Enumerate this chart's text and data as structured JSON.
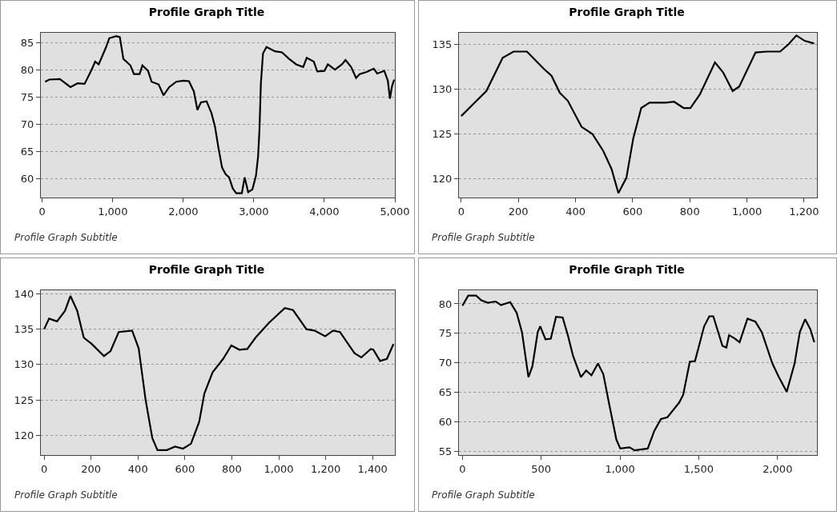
{
  "chart_data": [
    {
      "type": "line",
      "title": "Profile Graph Title",
      "annotations": [
        "Profile Graph Subtitle"
      ],
      "xlim": [
        -20,
        5000
      ],
      "ylim": [
        56.5,
        86.8
      ],
      "xticks": [
        0,
        {
          "value": 1000,
          "label": "1,000"
        },
        {
          "value": 2000,
          "label": "2,000"
        },
        {
          "value": 3000,
          "label": "3,000"
        },
        {
          "value": 4000,
          "label": "4,000"
        },
        {
          "value": 5000,
          "label": "5,000"
        }
      ],
      "yticks": [
        60,
        65,
        70,
        75,
        80,
        85
      ],
      "grid": "y",
      "series": [
        {
          "color": "#000000",
          "x": [
            40,
            100,
            250,
            400,
            500,
            600,
            700,
            750,
            800,
            900,
            950,
            1050,
            1100,
            1150,
            1250,
            1300,
            1380,
            1420,
            1500,
            1550,
            1650,
            1720,
            1800,
            1900,
            2000,
            2080,
            2150,
            2200,
            2250,
            2330,
            2400,
            2450,
            2500,
            2550,
            2600,
            2650,
            2700,
            2750,
            2830,
            2870,
            2920,
            2980,
            3030,
            3060,
            3080,
            3100,
            3130,
            3180,
            3300,
            3400,
            3500,
            3600,
            3700,
            3750,
            3850,
            3900,
            4000,
            4050,
            4150,
            4250,
            4300,
            4380,
            4450,
            4500,
            4600,
            4700,
            4750,
            4850,
            4900,
            4930,
            4960,
            4990
          ],
          "values": [
            77.8,
            78.2,
            78.3,
            76.8,
            77.5,
            77.4,
            80,
            81.5,
            81,
            84,
            85.8,
            86.2,
            86,
            82,
            80.8,
            79.2,
            79.2,
            80.8,
            79.8,
            77.8,
            77.3,
            75.3,
            76.8,
            77.8,
            78,
            77.9,
            76,
            72.6,
            74,
            74.2,
            72,
            69.5,
            65.5,
            62,
            60.8,
            60.2,
            58.2,
            57.3,
            57.3,
            60.2,
            57.5,
            58,
            60.5,
            64,
            69,
            77.5,
            83,
            84.2,
            83.4,
            83.2,
            82,
            81,
            80.5,
            82.2,
            81.5,
            79.7,
            79.8,
            81,
            80,
            81,
            81.8,
            80.5,
            78.5,
            79.2,
            79.6,
            80.2,
            79.3,
            79.8,
            78,
            74.7,
            77,
            78.2
          ]
        }
      ]
    },
    {
      "type": "line",
      "title": "Profile Graph Title",
      "annotations": [
        "Profile Graph Subtitle"
      ],
      "xlim": [
        -8,
        1245
      ],
      "ylim": [
        117.9,
        136.3
      ],
      "xticks": [
        0,
        200,
        400,
        600,
        800,
        {
          "value": 1000,
          "label": "1,000"
        },
        {
          "value": 1200,
          "label": "1,200"
        }
      ],
      "yticks": [
        120,
        125,
        130,
        135
      ],
      "grid": "y",
      "series": [
        {
          "color": "#000000",
          "x": [
            0,
            50,
            88,
            145,
            183,
            230,
            288,
            316,
            345,
            373,
            421,
            459,
            497,
            526,
            550,
            578,
            602,
            630,
            659,
            716,
            745,
            778,
            802,
            835,
            888,
            916,
            950,
            973,
            1030,
            1069,
            1116,
            1145,
            1173,
            1202,
            1235
          ],
          "values": [
            127,
            128.6,
            129.8,
            133.5,
            134.2,
            134.2,
            132.3,
            131.5,
            129.6,
            128.7,
            125.8,
            125,
            123.1,
            121.1,
            118.4,
            120.1,
            124.5,
            127.9,
            128.5,
            128.5,
            128.6,
            127.9,
            127.9,
            129.4,
            133,
            131.9,
            129.8,
            130.3,
            134.1,
            134.2,
            134.2,
            135,
            136,
            135.4,
            135.1
          ]
        }
      ]
    },
    {
      "type": "line",
      "title": "Profile Graph Title",
      "annotations": [
        "Profile Graph Subtitle"
      ],
      "xlim": [
        -14,
        1495
      ],
      "ylim": [
        117.2,
        140.5
      ],
      "xticks": [
        0,
        200,
        400,
        600,
        800,
        {
          "value": 1000,
          "label": "1,000"
        },
        {
          "value": 1200,
          "label": "1,200"
        },
        {
          "value": 1400,
          "label": "1,400"
        }
      ],
      "yticks": [
        120,
        125,
        130,
        135,
        140
      ],
      "grid": "y",
      "series": [
        {
          "color": "#000000",
          "x": [
            0,
            21,
            55,
            89,
            112,
            141,
            169,
            203,
            255,
            283,
            318,
            375,
            403,
            432,
            461,
            483,
            523,
            558,
            592,
            626,
            661,
            683,
            718,
            763,
            798,
            832,
            866,
            901,
            958,
            1026,
            1061,
            1118,
            1152,
            1198,
            1232,
            1261,
            1323,
            1352,
            1392,
            1403,
            1432,
            1461,
            1489
          ],
          "values": [
            135,
            136.5,
            136.1,
            137.6,
            139.7,
            137.6,
            133.8,
            132.9,
            131.2,
            131.9,
            134.6,
            134.8,
            132.3,
            125.1,
            119.6,
            117.9,
            117.9,
            118.4,
            118.1,
            118.8,
            121.9,
            125.9,
            128.9,
            130.8,
            132.7,
            132.1,
            132.2,
            133.8,
            135.9,
            138,
            137.7,
            135,
            134.8,
            134,
            134.8,
            134.6,
            131.6,
            131,
            132.2,
            132.1,
            130.5,
            130.8,
            132.9
          ]
        }
      ]
    },
    {
      "type": "line",
      "title": "Profile Graph Title",
      "annotations": [
        "Profile Graph Subtitle"
      ],
      "xlim": [
        -22,
        2250
      ],
      "ylim": [
        54.4,
        82.3
      ],
      "xticks": [
        0,
        500,
        {
          "value": 1000,
          "label": "1,000"
        },
        {
          "value": 1500,
          "label": "1,500"
        },
        {
          "value": 2000,
          "label": "2,000"
        }
      ],
      "yticks": [
        55,
        60,
        65,
        70,
        75,
        80
      ],
      "grid": "y",
      "series": [
        {
          "color": "#000000",
          "x": [
            0,
            37,
            87,
            120,
            161,
            211,
            245,
            303,
            344,
            378,
            419,
            444,
            478,
            494,
            527,
            561,
            594,
            636,
            669,
            702,
            752,
            785,
            819,
            860,
            894,
            927,
            977,
            1002,
            1060,
            1093,
            1176,
            1218,
            1260,
            1301,
            1376,
            1401,
            1443,
            1476,
            1534,
            1567,
            1592,
            1650,
            1675,
            1692,
            1725,
            1759,
            1809,
            1859,
            1900,
            1967,
            2008,
            2058,
            2108,
            2141,
            2175,
            2208,
            2233
          ],
          "values": [
            79.7,
            81.4,
            81.4,
            80.6,
            80.2,
            80.4,
            79.8,
            80.3,
            78.5,
            75.2,
            67.6,
            69.4,
            75.2,
            76.2,
            74,
            74.1,
            77.8,
            77.7,
            74.7,
            71.2,
            67.6,
            68.7,
            67.9,
            69.9,
            68.1,
            63.6,
            57,
            55.5,
            55.7,
            55.2,
            55.5,
            58.5,
            60.5,
            60.8,
            63.3,
            64.6,
            70.2,
            70.3,
            76.2,
            77.9,
            77.9,
            72.9,
            72.6,
            74.7,
            74.2,
            73.5,
            77.5,
            77,
            75.2,
            69.9,
            67.6,
            65.1,
            69.9,
            75.2,
            77.4,
            75.7,
            73.5
          ]
        }
      ]
    }
  ]
}
